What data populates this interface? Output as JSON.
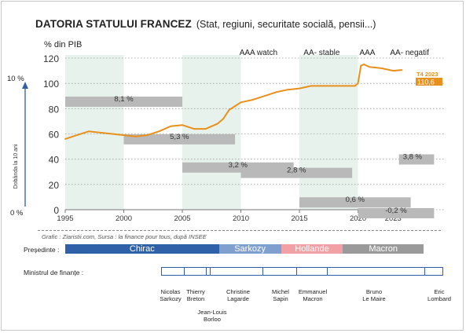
{
  "title": {
    "main": "DATORIA STATULUI FRANCEZ",
    "sub": "(Stat, regiuni, securitate socială, pensii...)"
  },
  "chart_data": {
    "type": "line",
    "title": "DATORIA STATULUI FRANCEZ (Stat, regiuni, securitate socială, pensii...)",
    "ylabel": "% din PIB",
    "right_axis_label": "Dobânda la 10 ani",
    "right_axis_ticks": [
      "10 %",
      "0 %"
    ],
    "xlim": [
      1995,
      2025.6
    ],
    "ylim": [
      0,
      120
    ],
    "x_ticks": [
      1995,
      2000,
      2005,
      2010,
      2015,
      2020,
      2023
    ],
    "y_ticks": [
      0,
      20,
      40,
      60,
      80,
      100,
      120
    ],
    "grid": "horizontal dotted",
    "line_color": "#e8901c",
    "series": [
      {
        "x": [
          1995,
          1996,
          1997,
          1998,
          1999,
          2000,
          2001,
          2002,
          2003,
          2004,
          2005,
          2006,
          2007,
          2008,
          2008.5,
          2009,
          2009.5,
          2010,
          2011,
          2012,
          2013,
          2014,
          2015,
          2016,
          2017,
          2018,
          2019,
          2019.75,
          2020,
          2020.25,
          2020.5,
          2021,
          2022,
          2023,
          2023.75
        ],
        "y": [
          56,
          59,
          62,
          61,
          60,
          59,
          58,
          59,
          62,
          66,
          67,
          64,
          64,
          68,
          72,
          79,
          82,
          85,
          87,
          90,
          93,
          95,
          96,
          98,
          98,
          98,
          98,
          98,
          100,
          114,
          115,
          113,
          112,
          110,
          110.6
        ]
      }
    ],
    "end_label": {
      "period": "T4 2023",
      "value": "110,6"
    },
    "shaded_periods": [
      [
        1995,
        2000
      ],
      [
        2005,
        2010
      ],
      [
        2015,
        2020
      ]
    ],
    "rating_annotations": [
      {
        "label": "AAA watch",
        "x": 2011.5
      },
      {
        "label": "AA- stable",
        "x": 2016.9
      },
      {
        "label": "AAA",
        "x": 2020.8
      },
      {
        "label": "AA- negatif",
        "x": 2024.4
      }
    ],
    "interest_rate_bars": [
      {
        "from": 1995,
        "to": 2005,
        "rate": 8.1,
        "label": "8,1 %"
      },
      {
        "from": 2000,
        "to": 2009.5,
        "rate": 5.3,
        "label": "5,3 %"
      },
      {
        "from": 2005,
        "to": 2014.5,
        "rate": 3.2,
        "label": "3,2 %"
      },
      {
        "from": 2010,
        "to": 2019.5,
        "rate": 2.8,
        "label": "2,8 %"
      },
      {
        "from": 2015,
        "to": 2024.5,
        "rate": 0.6,
        "label": "0,6 %"
      },
      {
        "from": 2020,
        "to": 2026.5,
        "rate": -0.2,
        "label": "-0,2 %"
      },
      {
        "from": 2023.5,
        "to": 2026.5,
        "rate": 3.8,
        "label": "3,8 %"
      }
    ]
  },
  "source": "Grafic : Ziaristii.com, Sursa : la finance pour tous, după INSEE",
  "presidents": {
    "label": "Președinte :",
    "items": [
      {
        "name": "Chirac",
        "from": 1995,
        "to": 2007.4,
        "color": "#2f61a8"
      },
      {
        "name": "Sarkozy",
        "from": 2007.4,
        "to": 2012.4,
        "color": "#7f9fcf"
      },
      {
        "name": "Hollande",
        "from": 2012.4,
        "to": 2017.4,
        "color": "#f1a1a6"
      },
      {
        "name": "Macron",
        "from": 2017.4,
        "to": 2023.9,
        "color": "#9a9a9a"
      }
    ]
  },
  "ministers": {
    "label": "Ministrul de finanțe :",
    "items": [
      {
        "name": "Nicolas\nSarkozy"
      },
      {
        "name": "Thierry\nBreton"
      },
      {
        "name": "Jean-Louis\nBorloo"
      },
      {
        "name": "Christine\nLagarde"
      },
      {
        "name": "Michel\nSapin"
      },
      {
        "name": "Emmanuel\nMacron"
      },
      {
        "name": "Bruno\nLe Maire"
      },
      {
        "name": "Eric\nLombard"
      }
    ]
  }
}
